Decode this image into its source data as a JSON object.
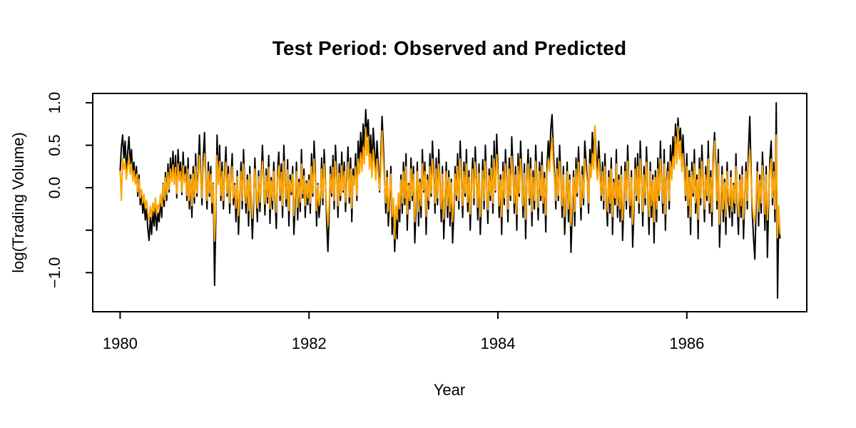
{
  "chart_data": {
    "type": "line",
    "title": "Test Period: Observed and Predicted",
    "xlabel": "Year",
    "ylabel": "log(Trading Volume)",
    "xlim": [
      1979.71,
      1987.27
    ],
    "ylim": [
      -1.46,
      1.11
    ],
    "grid": false,
    "legend_position": "none",
    "x_ticks": [
      {
        "value": 1980,
        "label": "1980"
      },
      {
        "value": 1982,
        "label": "1982"
      },
      {
        "value": 1984,
        "label": "1984"
      },
      {
        "value": 1986,
        "label": "1986"
      }
    ],
    "y_ticks": [
      {
        "value": 1.0,
        "label": "1.0"
      },
      {
        "value": 0.5,
        "label": "0.5"
      },
      {
        "value": 0.0,
        "label": "0.0"
      },
      {
        "value": -0.5,
        "label": ""
      },
      {
        "value": -1.0,
        "label": "−1.0"
      }
    ],
    "x_start": 1980,
    "x_step": 0.0133333,
    "series": [
      {
        "name": "Observed",
        "color": "#000000",
        "values": [
          0.2,
          0.48,
          0.62,
          0.35,
          0.55,
          0.18,
          0.42,
          0.6,
          0.28,
          0.45,
          0.15,
          0.3,
          0.05,
          0.25,
          -0.1,
          0.15,
          -0.2,
          -0.05,
          -0.3,
          -0.15,
          -0.38,
          -0.25,
          -0.48,
          -0.62,
          -0.35,
          -0.55,
          -0.28,
          -0.45,
          -0.2,
          -0.5,
          -0.3,
          -0.4,
          -0.12,
          -0.35,
          0.05,
          -0.22,
          0.18,
          -0.15,
          0.28,
          -0.05,
          0.35,
          0.1,
          0.43,
          0.05,
          0.38,
          -0.12,
          0.45,
          0.12,
          0.3,
          -0.08,
          0.42,
          0.08,
          0.25,
          -0.15,
          0.35,
          -0.25,
          0.15,
          -0.35,
          0.25,
          -0.18,
          0.4,
          -0.1,
          0.2,
          0.62,
          0.15,
          -0.2,
          0.35,
          0.65,
          0.1,
          -0.25,
          0.3,
          -0.1,
          0.25,
          -0.3,
          0.05,
          -1.15,
          -0.35,
          0.62,
          0.05,
          0.5,
          -0.15,
          0.3,
          -0.25,
          0.15,
          0.48,
          -0.1,
          0.25,
          -0.3,
          0.1,
          0.4,
          -0.2,
          0.05,
          -0.4,
          0.2,
          -0.55,
          -0.1,
          0.3,
          -0.25,
          0.45,
          0.0,
          -0.3,
          0.15,
          -0.45,
          0.25,
          -0.15,
          -0.6,
          -0.2,
          0.35,
          -0.05,
          -0.4,
          0.2,
          -0.28,
          0.1,
          0.5,
          0.08,
          -0.32,
          0.22,
          -0.18,
          0.38,
          -0.42,
          0.12,
          -0.25,
          0.3,
          -0.1,
          -0.48,
          0.18,
          0.42,
          -0.15,
          0.28,
          -0.35,
          0.5,
          0.05,
          -0.22,
          0.33,
          -0.45,
          0.15,
          -0.08,
          0.25,
          -0.55,
          -0.18,
          0.3,
          -0.38,
          0.1,
          -0.28,
          0.45,
          -0.12,
          0.22,
          -0.35,
          0.08,
          -0.2,
          0.15,
          -0.3,
          0.4,
          -0.1,
          0.55,
          0.2,
          -0.45,
          0.05,
          -0.35,
          -0.15,
          0.35,
          -0.2,
          0.45,
          0.1,
          -0.4,
          -0.75,
          -0.3,
          0.25,
          -0.1,
          0.38,
          -0.25,
          0.5,
          0.15,
          -0.35,
          0.28,
          -0.15,
          0.42,
          -0.05,
          0.3,
          -0.28,
          0.12,
          0.48,
          -0.18,
          0.35,
          -0.4,
          0.22,
          0.05,
          0.4,
          -0.15,
          0.55,
          0.25,
          0.65,
          0.3,
          0.75,
          0.45,
          0.92,
          0.6,
          0.8,
          0.35,
          0.62,
          0.2,
          0.7,
          0.45,
          0.15,
          0.55,
          0.25,
          -0.05,
          0.35,
          0.84,
          0.5,
          0.1,
          -0.3,
          0.2,
          -0.45,
          -0.15,
          0.25,
          -0.55,
          -0.2,
          -0.75,
          -0.35,
          -0.6,
          -0.1,
          -0.4,
          0.15,
          -0.3,
          0.3,
          -0.2,
          0.4,
          -0.5,
          0.05,
          -0.25,
          0.35,
          -0.15,
          0.25,
          -0.65,
          -0.2,
          0.3,
          -0.45,
          0.1,
          -0.35,
          0.45,
          -0.05,
          0.3,
          -0.55,
          0.15,
          -0.25,
          0.4,
          -0.1,
          0.55,
          0.2,
          -0.3,
          0.35,
          -0.2,
          0.45,
          0.05,
          -0.4,
          0.25,
          -0.6,
          -0.15,
          0.3,
          -0.35,
          0.2,
          -0.45,
          0.1,
          -0.65,
          -0.3,
          0.25,
          -0.15,
          0.4,
          -0.25,
          0.55,
          0.15,
          -0.35,
          0.3,
          -0.1,
          0.45,
          -0.28,
          0.2,
          -0.5,
          0.05,
          0.35,
          -0.2,
          0.48,
          0.12,
          -0.38,
          0.28,
          -0.55,
          -0.1,
          0.33,
          -0.25,
          0.5,
          0.08,
          -0.42,
          0.22,
          -0.15,
          0.38,
          -0.3,
          0.55,
          -0.05,
          0.63,
          0.25,
          -0.35,
          0.15,
          -0.55,
          0.3,
          -0.2,
          0.45,
          0.1,
          -0.4,
          0.35,
          -0.15,
          0.6,
          0.2,
          -0.3,
          0.25,
          -0.5,
          0.4,
          -0.1,
          0.55,
          0.15,
          -0.35,
          0.28,
          -0.6,
          0.1,
          0.45,
          -0.2,
          0.35,
          -0.45,
          0.2,
          -0.25,
          0.5,
          0.05,
          -0.38,
          0.3,
          -0.15,
          0.42,
          -0.3,
          0.18,
          -0.52,
          0.25,
          0.55,
          0.3,
          0.7,
          0.86,
          0.45,
          0.15,
          -0.25,
          0.35,
          -0.15,
          0.5,
          0.1,
          -0.35,
          0.25,
          -0.55,
          -0.1,
          0.3,
          -0.4,
          0.15,
          -0.76,
          -0.3,
          0.2,
          -0.45,
          0.35,
          -0.1,
          0.48,
          0.05,
          -0.38,
          0.25,
          -0.2,
          0.55,
          0.3,
          0.1,
          -0.3,
          0.45,
          0.2,
          0.65,
          0.35,
          0.72,
          0.4,
          0.15,
          0.55,
          0.25,
          -0.15,
          0.3,
          -0.25,
          0.4,
          -0.1,
          -0.45,
          0.2,
          -0.3,
          0.35,
          -0.55,
          0.1,
          -0.2,
          0.45,
          -0.35,
          0.15,
          -0.4,
          0.25,
          -0.62,
          -0.15,
          0.3,
          -0.25,
          0.5,
          0.05,
          -0.35,
          0.2,
          -0.7,
          -0.25,
          0.35,
          -0.15,
          0.4,
          -0.3,
          0.55,
          0.1,
          -0.45,
          0.25,
          -0.2,
          0.48,
          -0.05,
          -0.55,
          0.3,
          -0.35,
          0.15,
          -0.65,
          0.2,
          -0.4,
          0.35,
          -0.15,
          0.55,
          0.05,
          -0.3,
          0.45,
          -0.5,
          0.1,
          0.3,
          -0.25,
          0.5,
          0.15,
          0.6,
          0.35,
          0.75,
          0.45,
          0.82,
          0.55,
          0.7,
          0.3,
          0.62,
          0.25,
          -0.15,
          0.4,
          -0.35,
          0.2,
          -0.55,
          0.3,
          -0.1,
          0.45,
          -0.3,
          0.15,
          -0.6,
          0.35,
          -0.2,
          0.5,
          0.05,
          -0.4,
          0.25,
          -0.15,
          0.55,
          -0.3,
          0.2,
          -0.45,
          0.35,
          0.65,
          0.3,
          -0.25,
          0.45,
          -0.7,
          -0.2,
          0.25,
          -0.4,
          0.1,
          -0.55,
          0.3,
          -0.15,
          -0.35,
          0.2,
          -0.45,
          0.05,
          -0.3,
          0.4,
          -0.2,
          -0.55,
          0.15,
          -0.35,
          0.25,
          -0.6,
          -0.1,
          0.3,
          -0.25,
          0.45,
          0.84,
          0.2,
          -0.3,
          -0.6,
          -0.84,
          -0.25,
          0.3,
          -0.45,
          0.15,
          -0.3,
          0.42,
          0.1,
          -0.5,
          0.25,
          -0.82,
          -0.15,
          0.35,
          0.55,
          -0.2,
          0.3,
          -0.4,
          1.0,
          -1.3,
          -0.35,
          -0.6
        ]
      },
      {
        "name": "Predicted",
        "color": "#FFA500",
        "values": [
          0.2,
          -0.15,
          0.35,
          0.22,
          0.3,
          0.1,
          0.26,
          0.36,
          0.16,
          0.28,
          0.08,
          0.2,
          0.04,
          0.16,
          -0.05,
          0.1,
          -0.12,
          -0.02,
          -0.18,
          -0.08,
          -0.24,
          -0.15,
          -0.3,
          -0.38,
          -0.22,
          -0.34,
          -0.18,
          -0.28,
          -0.12,
          -0.32,
          -0.2,
          -0.26,
          -0.08,
          -0.22,
          0.04,
          -0.14,
          0.12,
          -0.08,
          0.18,
          -0.02,
          0.22,
          0.07,
          0.27,
          0.04,
          0.24,
          -0.07,
          0.28,
          0.08,
          0.19,
          -0.05,
          0.26,
          0.06,
          0.16,
          -0.09,
          0.22,
          -0.15,
          0.1,
          -0.21,
          0.16,
          -0.11,
          0.25,
          -0.06,
          0.13,
          0.38,
          0.1,
          -0.12,
          0.22,
          0.4,
          0.07,
          -0.15,
          0.19,
          -0.06,
          0.16,
          -0.18,
          0.04,
          -0.63,
          -0.22,
          0.38,
          0.04,
          0.31,
          -0.09,
          0.19,
          -0.15,
          0.1,
          0.3,
          -0.06,
          0.16,
          -0.18,
          0.07,
          0.25,
          -0.12,
          0.03,
          -0.24,
          0.13,
          -0.33,
          -0.06,
          0.19,
          -0.15,
          0.28,
          0.0,
          -0.18,
          0.09,
          -0.27,
          0.16,
          -0.09,
          -0.36,
          -0.12,
          0.22,
          -0.03,
          -0.24,
          0.13,
          -0.17,
          0.06,
          0.31,
          0.05,
          -0.19,
          0.14,
          -0.11,
          0.24,
          -0.25,
          0.08,
          -0.15,
          0.19,
          -0.06,
          -0.29,
          0.11,
          0.26,
          -0.09,
          0.18,
          -0.21,
          0.31,
          0.03,
          -0.13,
          0.21,
          -0.27,
          0.09,
          -0.05,
          0.16,
          -0.33,
          -0.11,
          0.19,
          -0.23,
          0.06,
          -0.17,
          0.28,
          -0.07,
          0.14,
          -0.21,
          0.05,
          -0.12,
          0.09,
          -0.18,
          0.25,
          -0.06,
          0.34,
          0.12,
          -0.27,
          0.03,
          -0.21,
          -0.09,
          0.22,
          -0.12,
          0.28,
          0.06,
          -0.24,
          -0.45,
          -0.18,
          0.16,
          -0.06,
          0.24,
          -0.15,
          0.31,
          0.09,
          -0.21,
          0.17,
          -0.09,
          0.26,
          -0.03,
          0.19,
          -0.17,
          0.07,
          0.3,
          -0.11,
          0.22,
          -0.24,
          0.14,
          0.03,
          0.25,
          -0.09,
          0.34,
          0.16,
          0.41,
          0.19,
          0.48,
          0.28,
          0.71,
          0.38,
          0.6,
          0.22,
          0.4,
          0.12,
          0.45,
          0.28,
          0.09,
          0.34,
          0.16,
          -0.03,
          0.22,
          0.67,
          0.31,
          0.06,
          -0.18,
          0.12,
          -0.28,
          -0.09,
          0.16,
          -0.34,
          -0.12,
          -0.6,
          -0.21,
          -0.37,
          -0.06,
          -0.25,
          0.09,
          -0.18,
          0.19,
          -0.12,
          0.25,
          -0.31,
          0.03,
          -0.15,
          0.22,
          -0.09,
          0.16,
          -0.4,
          -0.12,
          0.19,
          -0.28,
          0.06,
          -0.21,
          0.28,
          -0.03,
          0.19,
          -0.34,
          0.09,
          -0.15,
          0.25,
          -0.06,
          0.34,
          0.12,
          -0.18,
          0.22,
          -0.12,
          0.28,
          0.03,
          -0.25,
          0.16,
          -0.37,
          -0.09,
          0.19,
          -0.21,
          0.12,
          -0.28,
          0.06,
          -0.4,
          -0.18,
          0.16,
          -0.09,
          0.25,
          -0.15,
          0.34,
          0.09,
          -0.21,
          0.19,
          -0.06,
          0.28,
          -0.17,
          0.12,
          -0.31,
          0.03,
          0.22,
          -0.12,
          0.3,
          0.07,
          -0.23,
          0.17,
          -0.34,
          -0.06,
          0.2,
          -0.15,
          0.31,
          0.05,
          -0.26,
          0.14,
          -0.09,
          0.23,
          -0.18,
          0.34,
          -0.03,
          0.39,
          0.15,
          -0.21,
          0.09,
          -0.34,
          0.19,
          -0.12,
          0.28,
          0.06,
          -0.25,
          0.22,
          -0.09,
          0.37,
          0.12,
          -0.18,
          0.15,
          -0.31,
          0.25,
          -0.06,
          0.34,
          0.09,
          -0.21,
          0.17,
          -0.37,
          0.06,
          0.28,
          -0.12,
          0.22,
          -0.28,
          0.12,
          -0.15,
          0.31,
          0.03,
          -0.23,
          0.19,
          -0.09,
          0.26,
          -0.18,
          0.11,
          -0.32,
          0.15,
          0.34,
          0.19,
          0.43,
          0.59,
          0.28,
          0.09,
          -0.15,
          0.22,
          -0.09,
          0.31,
          0.06,
          -0.21,
          0.15,
          -0.34,
          -0.06,
          0.19,
          -0.25,
          0.09,
          -0.45,
          -0.18,
          0.12,
          -0.28,
          0.22,
          -0.06,
          0.3,
          0.03,
          -0.23,
          0.15,
          -0.12,
          0.34,
          0.19,
          0.06,
          -0.18,
          0.28,
          0.12,
          0.4,
          0.22,
          0.73,
          0.25,
          0.09,
          0.34,
          0.15,
          -0.09,
          0.19,
          -0.15,
          0.25,
          -0.06,
          -0.28,
          0.12,
          -0.18,
          0.22,
          -0.34,
          0.06,
          -0.12,
          0.28,
          -0.21,
          0.09,
          -0.25,
          0.15,
          -0.38,
          -0.09,
          0.19,
          -0.15,
          0.31,
          0.03,
          -0.21,
          0.12,
          -0.43,
          -0.15,
          0.22,
          -0.09,
          0.25,
          -0.18,
          0.34,
          0.06,
          -0.28,
          0.15,
          -0.12,
          0.3,
          -0.03,
          -0.34,
          0.19,
          -0.21,
          0.09,
          -0.4,
          0.12,
          -0.25,
          0.22,
          -0.09,
          0.34,
          0.03,
          -0.18,
          0.28,
          -0.31,
          0.06,
          0.19,
          -0.15,
          0.31,
          0.09,
          0.37,
          0.22,
          0.6,
          0.28,
          0.72,
          0.34,
          0.55,
          0.19,
          0.4,
          0.15,
          -0.09,
          0.25,
          -0.21,
          0.12,
          -0.34,
          0.19,
          -0.06,
          0.28,
          -0.18,
          0.09,
          -0.37,
          0.22,
          -0.12,
          0.31,
          0.03,
          -0.25,
          0.15,
          -0.09,
          0.34,
          -0.18,
          0.12,
          -0.28,
          0.22,
          0.55,
          0.19,
          -0.15,
          0.28,
          -0.43,
          -0.12,
          0.15,
          -0.25,
          0.06,
          -0.34,
          0.19,
          -0.09,
          -0.21,
          0.12,
          -0.28,
          0.03,
          -0.18,
          0.25,
          -0.12,
          -0.34,
          0.09,
          -0.21,
          0.15,
          -0.37,
          -0.06,
          0.19,
          -0.15,
          0.28,
          0.45,
          0.12,
          -0.18,
          -0.37,
          -0.4,
          -0.15,
          0.19,
          -0.28,
          0.09,
          -0.18,
          0.26,
          0.06,
          -0.31,
          0.15,
          -0.38,
          -0.09,
          0.22,
          0.34,
          -0.12,
          0.19,
          -0.25,
          0.62,
          -0.59,
          -0.21,
          -0.55
        ]
      }
    ]
  }
}
